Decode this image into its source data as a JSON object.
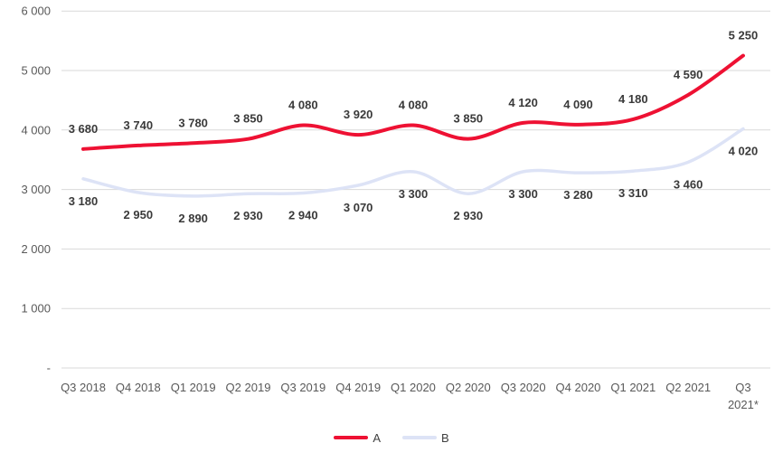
{
  "chart_data": {
    "type": "line",
    "title": "",
    "xlabel": "",
    "ylabel": "",
    "categories": [
      "Q3 2018",
      "Q4 2018",
      "Q1 2019",
      "Q2 2019",
      "Q3 2019",
      "Q4 2019",
      "Q1 2020",
      "Q2 2020",
      "Q3 2020",
      "Q4 2020",
      "Q1 2021",
      "Q2 2021",
      "Q3 2021*"
    ],
    "wrap_last_category": true,
    "series": [
      {
        "name": "A",
        "color": "#ee1133",
        "label_position": "above",
        "values": [
          3680,
          3740,
          3780,
          3850,
          4080,
          3920,
          4080,
          3850,
          4120,
          4090,
          4180,
          4590,
          5250
        ]
      },
      {
        "name": "B",
        "color": "#dde3f6",
        "label_position": "below",
        "values": [
          3180,
          2950,
          2890,
          2930,
          2940,
          3070,
          3300,
          2930,
          3300,
          3280,
          3310,
          3460,
          4020
        ]
      }
    ],
    "y_ticks": [
      {
        "value": 6000,
        "label": "6 000"
      },
      {
        "value": 5000,
        "label": "5 000"
      },
      {
        "value": 4000,
        "label": "4 000"
      },
      {
        "value": 3000,
        "label": "3 000"
      },
      {
        "value": 2000,
        "label": "2 000"
      },
      {
        "value": 1000,
        "label": "1 000"
      },
      {
        "value": 0,
        "label": "-"
      }
    ],
    "ylim": [
      0,
      6000
    ],
    "grid": true,
    "smoothed": true,
    "number_format": "space-thousands",
    "legend_position": "bottom"
  },
  "colors": {
    "gridline": "#d9d9d9",
    "axis_label": "#595959",
    "data_label": "#3a3a3a",
    "series_a": "#ee1133",
    "series_b": "#dde3f6"
  }
}
